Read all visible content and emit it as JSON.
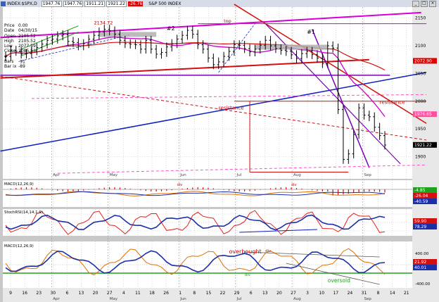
{
  "window": {
    "title_symbol": "INDEX:$SPX,D",
    "title_name": "S&P 500 INDEX",
    "quote_boxes": [
      "1947.76",
      "1947.76",
      "1911.21",
      "1921.22",
      "-26.76"
    ]
  },
  "info_panel": [
    {
      "label": "Price",
      "value": "0.00"
    },
    {
      "label": "Date",
      "value": "04/30/15"
    },
    {
      "label": "Open",
      "value": "2105.52"
    },
    {
      "label": "High",
      "value": "2105.52"
    },
    {
      "label": "Low",
      "value": "2077.59"
    },
    {
      "label": "Close",
      "value": "2085.51"
    },
    {
      "label": "# Bars",
      "value": "-91"
    },
    {
      "label": "Bar ix",
      "value": "-89"
    }
  ],
  "colors": {
    "price_tag_red": "#e00000",
    "price_tag_pink": "#ff50a0",
    "price_tag_black": "#000000",
    "macd_signal": "#1c2fa8",
    "stochrsi": "#e8201c",
    "magenta": "#d400d4",
    "red_line": "#d01010",
    "blue_line": "#1020c0",
    "green_line": "#20a020",
    "purple_line": "#7a00b4"
  },
  "icons": [
    "close-icon",
    "minimize-icon",
    "maximize-icon"
  ],
  "chart_data": [
    {
      "type": "ohlc",
      "panel": "price",
      "ylim": [
        1860,
        2170
      ],
      "yticks": [
        1900,
        1950,
        2000,
        2050,
        2100,
        2150
      ],
      "x_day_labels": [
        "9",
        "16",
        "23",
        "30",
        "6",
        "13",
        "20",
        "27",
        "4",
        "11",
        "18",
        "26",
        "1",
        "8",
        "15",
        "22",
        "29",
        "6",
        "13",
        "20",
        "27",
        "3",
        "10",
        "17",
        "24",
        "31",
        "8",
        "14",
        "21"
      ],
      "x_month_labels": [
        {
          "label": "Apr",
          "after_index": 3
        },
        {
          "label": "May",
          "after_index": 7
        },
        {
          "label": "Jun",
          "after_index": 12
        },
        {
          "label": "Jul",
          "after_index": 16
        },
        {
          "label": "Aug",
          "after_index": 20
        },
        {
          "label": "Sep",
          "after_index": 25
        }
      ],
      "closes": [
        2081,
        2092,
        2090,
        2085,
        2086,
        2091,
        2097,
        2103,
        2110,
        2112,
        2118,
        2120,
        2108,
        2106,
        2100,
        2104,
        2112,
        2119,
        2125,
        2130,
        2127,
        2121,
        2110,
        2104,
        2103,
        2102,
        2094,
        2110,
        2094,
        2085,
        2088,
        2098,
        2104,
        2112,
        2119,
        2128,
        2121,
        2102,
        2094,
        2078,
        2066,
        2071,
        2081,
        2090,
        2102,
        2101,
        2095,
        2089,
        2094,
        2101,
        2110,
        2100,
        2095,
        2092,
        2090,
        2084,
        2077,
        2086,
        2090,
        2084,
        2078,
        2068,
        2100,
        2096,
        1985,
        1895,
        1905,
        1940,
        1988,
        1975,
        1972,
        1953,
        1938,
        1921
      ],
      "annotations": [
        "2134.72",
        "#2",
        "top",
        "#1",
        "resistance",
        "resistance"
      ],
      "price_tags": [
        "2072.90",
        "1976.65",
        "1921.22"
      ]
    },
    {
      "type": "line",
      "panel": "macd_top",
      "label": "MACD(12,26,9)",
      "values_tags": [
        "-4.85",
        "-26.04",
        "-40.59"
      ],
      "annotations": [
        "div",
        "div"
      ]
    },
    {
      "type": "line",
      "panel": "stoch_rsi",
      "label": "StochRSI(14,14,1,9)",
      "values_tags": [
        "59.90",
        "78.29"
      ]
    },
    {
      "type": "line",
      "panel": "macd_bottom",
      "label": "MACD(12,26,9)",
      "yticks": [
        "400.00",
        "-400.00"
      ],
      "values_tags": [
        "21.92",
        "40.01"
      ],
      "annotations": [
        "overbought",
        "div",
        "div",
        "oversold"
      ]
    }
  ]
}
